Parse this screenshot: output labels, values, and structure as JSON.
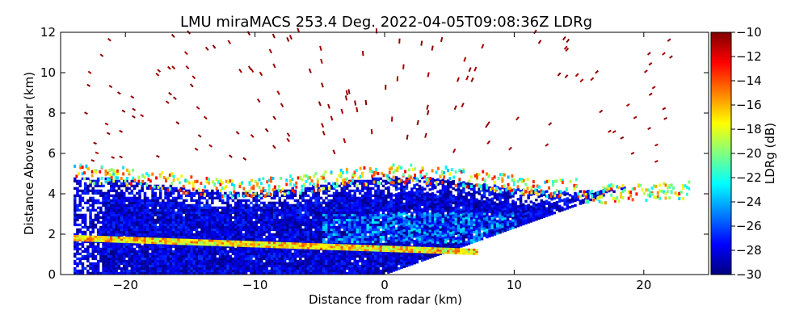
{
  "chart_data": {
    "type": "heatmap",
    "title": "LMU miraMACS 253.4 Deg. 2022-04-05T09:08:36Z  LDRg",
    "xlabel": "Distance from radar (km)",
    "ylabel": "Distance Above radar  (km)",
    "xlim": [
      -25,
      25
    ],
    "ylim": [
      0,
      12
    ],
    "xticks": [
      -20,
      -10,
      0,
      10,
      20
    ],
    "yticks": [
      0,
      2,
      4,
      6,
      8,
      10,
      12
    ],
    "grid": false,
    "scan_azimuth_deg": 253.4,
    "colorbar": {
      "label": "LDRg (dB)",
      "range": [
        -30,
        -10
      ],
      "ticks": [
        -10,
        -12,
        -14,
        -16,
        -18,
        -20,
        -22,
        -24,
        -26,
        -28,
        -30
      ],
      "colormap": "jet",
      "colors": [
        "#00007f",
        "#0000ff",
        "#007fff",
        "#00ffff",
        "#7fff7f",
        "#ffff00",
        "#ff7f00",
        "#ff0000",
        "#7f0000"
      ]
    },
    "regions": [
      {
        "name": "dense-cloud",
        "x_range": [
          -24,
          22
        ],
        "y_range": [
          0,
          5.2
        ],
        "ldr_db_range": [
          -30,
          -24
        ]
      },
      {
        "name": "melting-layer-band",
        "x_range": [
          -24,
          7
        ],
        "y_range": [
          1.1,
          2.0
        ],
        "ldr_db_range": [
          -20,
          -14
        ]
      },
      {
        "name": "cloud-top-edge",
        "x_range": [
          -24,
          23.5
        ],
        "y_range": [
          3.8,
          5.4
        ],
        "ldr_db_range": [
          -24,
          -12
        ]
      },
      {
        "name": "sparse-upper-echoes",
        "x_range": [
          -23,
          22
        ],
        "y_range": [
          5.5,
          12
        ],
        "ldr_db_range": [
          -11,
          -10
        ]
      }
    ]
  }
}
